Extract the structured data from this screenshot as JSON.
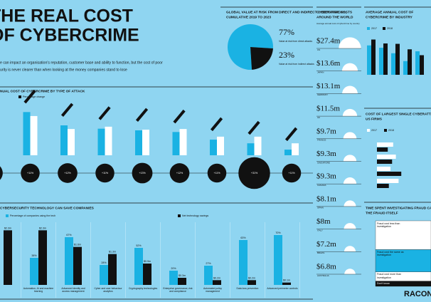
{
  "header": {
    "title": [
      "THE REAL COST",
      "OF CYBERCRIME"
    ],
    "intro": [
      "e can impact an organisation's reputation, customer base and ability to function, but the cost of poor",
      "urity is never clearer than when looking at the money companies stand to lose"
    ],
    "brand": "RACON"
  },
  "chart_data": [
    {
      "type": "pie",
      "title": [
        "GLOBAL VALUE AT RISK FROM DIRECT AND INDIRECT CYBERATTACKS,",
        "CUMULATIVE 2019 TO 2023"
      ],
      "categories": [
        "Value at risk from direct attacks",
        "Value at risk from indirect attacks"
      ],
      "values": [
        77,
        23
      ],
      "value_labels": [
        "77%",
        "23%"
      ],
      "colors": [
        "#1ab2e3",
        "#111111"
      ]
    },
    {
      "type": "bar",
      "title": [
        "NUAL COST OF CYBERCRIME BY TYPE OF ATTACK"
      ],
      "categories": [
        null,
        null,
        null,
        null,
        null,
        null,
        null,
        null,
        null
      ],
      "ylim": [
        0,
        15
      ],
      "series": [
        {
          "color": "#1ab2e3",
          "values": [
            10,
            13,
            9,
            8,
            7.5,
            7,
            4.7,
            3.6,
            1.7
          ]
        },
        {
          "color": "#ffffff",
          "values": [
            9,
            11.8,
            7.9,
            8.6,
            7.7,
            7.9,
            5.6,
            5.6,
            3.6
          ]
        }
      ],
      "changes": {
        "name": "Percentage change",
        "color": "#111111",
        "values": [
          12,
          11,
          12,
          11,
          13,
          12,
          11,
          31,
          11
        ],
        "value_labels": [
          "+12%",
          "+11%",
          "+12%",
          "+11%",
          "+13%",
          "+12%",
          "+11%",
          "+31%",
          "+11%"
        ]
      }
    },
    {
      "type": "bar",
      "title": [
        "CYBERSECURITY TECHNOLOGY CAN SAVE COMPANIES"
      ],
      "categories": [
        null,
        "Automation, AI and machine learning",
        "Advanced identity and access management",
        "Cyber and user behaviour analytics",
        "Cryptography technologies",
        "Enterprise governance, risk and compliance",
        "Automated policy management",
        "Data loss prevention",
        "Advanced perimeter controls"
      ],
      "ylim": [
        0,
        100
      ],
      "y2lim": [
        0,
        3
      ],
      "series": [
        {
          "name": "Percentage of companies using the tech",
          "color": "#1ab2e3",
          "values": [
            null,
            38,
            67,
            28,
            52,
            20,
            27,
            63,
            70
          ],
          "value_labels": [
            null,
            "38%",
            "67%",
            "28%",
            "52%",
            "20%",
            "27%",
            "63%",
            "70%"
          ]
        },
        {
          "name": "Net technology savings",
          "color": "#111111",
          "axis": "y2",
          "values": [
            2.3,
            2.3,
            1.6,
            1.3,
            0.9,
            0.3,
            0.2,
            0.2,
            0.1
          ],
          "value_labels": [
            "$2.3m",
            "$2.3m",
            "$1.6m",
            "$1.3m",
            "$0.9m",
            "$0.3m",
            "$0.2m",
            "$0.2m",
            "$0.1m"
          ]
        }
      ]
    },
    {
      "type": "semicircle",
      "title": [
        "CYBERCRIME COSTS",
        "AROUND THE WORLD"
      ],
      "subtitle": "Average annual cost of cybercrime by country",
      "categories": [
        "US",
        "JAPAN",
        "GERMANY",
        "UK",
        "FRANCE",
        "SINGAPORE",
        "CANADA",
        "SPAIN",
        "ITALY",
        "BRAZIL",
        "AUSTRALIA"
      ],
      "values": [
        27.4,
        13.6,
        13.1,
        11.5,
        9.7,
        9.3,
        9.3,
        8.1,
        8,
        7.2,
        6.8
      ],
      "value_labels": [
        "$27.4m",
        "$13.6m",
        "$13.1m",
        "$11.5m",
        "$9.7m",
        "$9.3m",
        "$9.3m",
        "$8.1m",
        "$8m",
        "$7.2m",
        "$6.8m"
      ],
      "color": "#ffffff"
    },
    {
      "type": "bar",
      "title": [
        "AVERAGE ANNUAL COST OF",
        "CYBERCRIME BY INDUSTRY"
      ],
      "categories": [
        null,
        null,
        null,
        null,
        null
      ],
      "ylim": [
        0,
        20
      ],
      "series": [
        {
          "name": "2017",
          "color": "#1ab2e3",
          "values": [
            15,
            13.8,
            11,
            7,
            12
          ]
        },
        {
          "name": "2018",
          "color": "#111111",
          "values": [
            18,
            16,
            15.8,
            13,
            10
          ]
        }
      ]
    },
    {
      "type": "hbar",
      "title": [
        "COST OF LARGEST SINGLE CYBERATTACK TO",
        "US FIRMS"
      ],
      "categories": [
        null,
        null,
        null,
        null
      ],
      "xlim": [
        0,
        100
      ],
      "series": [
        {
          "name": "2017",
          "color": "#ffffff",
          "values": [
            30,
            35,
            25,
            40
          ]
        },
        {
          "name": "2018",
          "color": "#111111",
          "values": [
            20,
            28,
            45,
            22
          ]
        }
      ]
    },
    {
      "type": "stack",
      "title": [
        "TIME SPENT INVESTIGATING FRAUD CAN COST",
        "THE FRAUD ITSELF"
      ],
      "categories": [
        "Fraud cost less than investigation",
        "Fraud cost the same as investigation",
        "Fraud cost more than investigation",
        "Don't know"
      ],
      "values": [
        44,
        34,
        14,
        8
      ],
      "colors": [
        "#ffffff",
        "#1ab2e3",
        "#ffffff",
        "#111111"
      ],
      "ylim": [
        0,
        100
      ]
    }
  ]
}
